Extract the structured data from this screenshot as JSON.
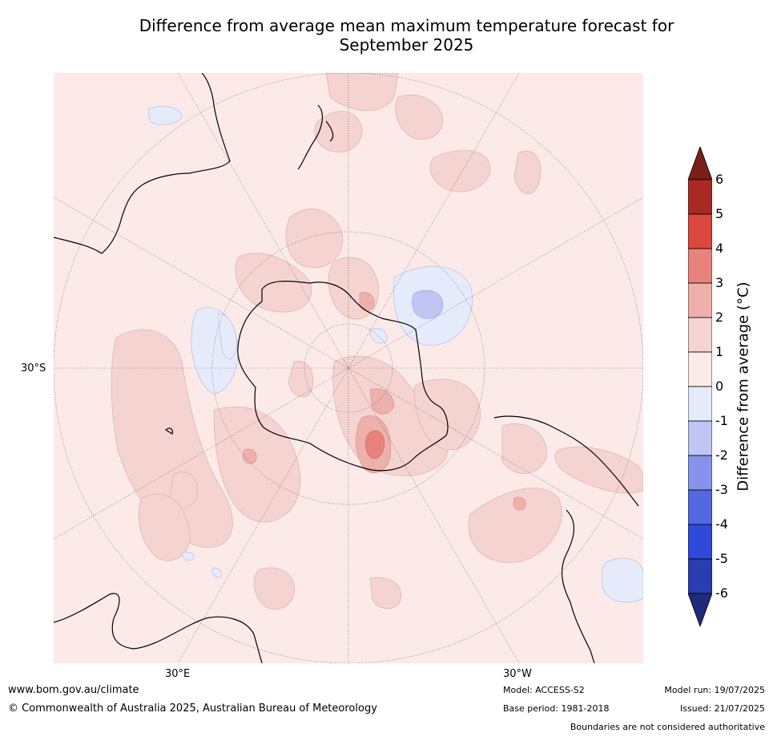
{
  "title": "Difference from average mean maximum temperature forecast for",
  "subtitle": "September 2025",
  "map": {
    "projection": "south-polar-stereographic",
    "lat_label": "30°S",
    "lon_labels": [
      "30°E",
      "30°W"
    ]
  },
  "colorbar": {
    "title": "Difference from average (°C)",
    "ticks": [
      "6",
      "5",
      "4",
      "3",
      "2",
      "1",
      "0",
      "-1",
      "-2",
      "-3",
      "-4",
      "-5",
      "-6"
    ],
    "colors": {
      "gt6": "#7a1e1a",
      "5_6": "#a82a22",
      "4_5": "#d9473e",
      "3_4": "#e8837b",
      "2_3": "#eeb0aa",
      "1_2": "#f4d3d0",
      "0_1": "#fbeae8",
      "m1_0": "#e6ebfb",
      "m2_m1": "#c0c6f3",
      "m3_m2": "#8793ea",
      "m4_m3": "#5468e2",
      "m5_m4": "#2f4ad9",
      "m6_m5": "#2a3db0",
      "ltm6": "#1e2a7d"
    }
  },
  "footer": {
    "website": "www.bom.gov.au/climate",
    "copyright": "© Commonwealth of Australia 2025, Australian Bureau of Meteorology",
    "model": "Model: ACCESS-S2",
    "base_period": "Base period: 1981-2018",
    "model_run": "Model run: 19/07/2025",
    "issued": "Issued: 21/07/2025",
    "disclaimer": "Boundaries are not considered authoritative"
  }
}
